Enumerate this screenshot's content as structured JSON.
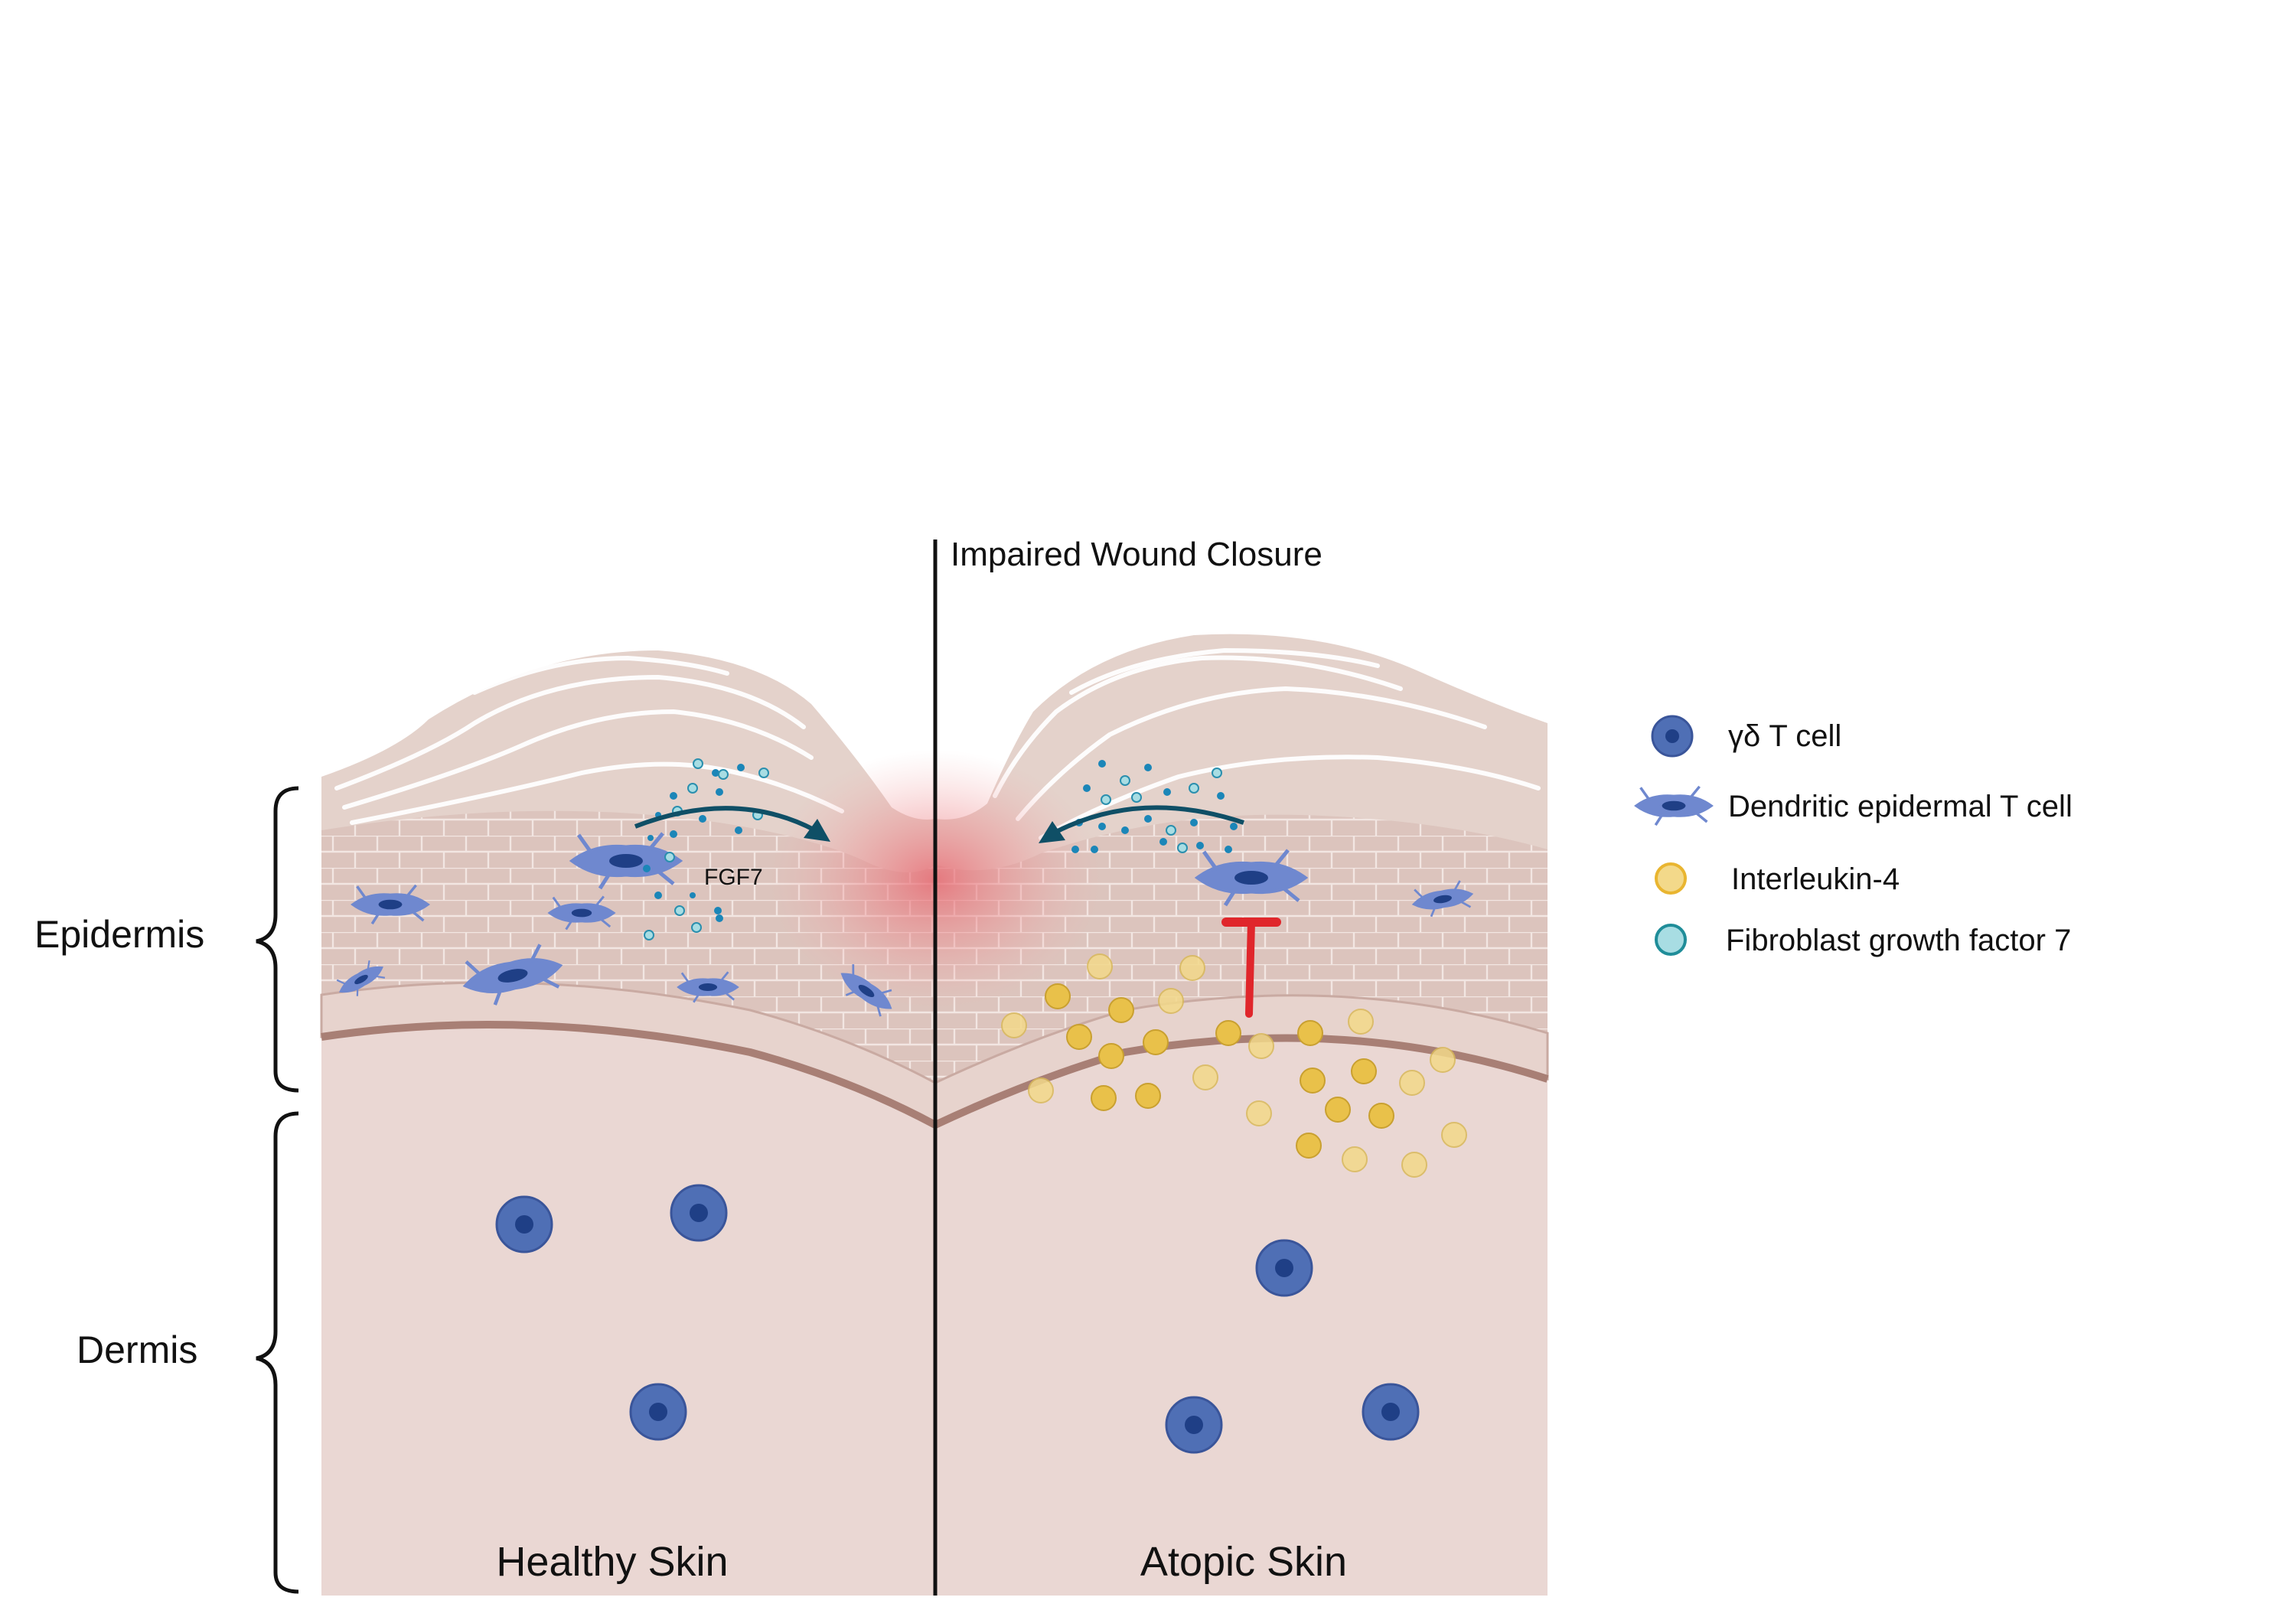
{
  "header": {
    "title": "Impaired Wound Closure"
  },
  "layers": {
    "epidermis": "Epidermis",
    "dermis": "Dermis"
  },
  "panels": {
    "left": "Healthy Skin",
    "right": "Atopic Skin"
  },
  "annotations": {
    "fgf7": "FGF7"
  },
  "legend": {
    "items": [
      {
        "label": "γδ T cell",
        "icon": "gamma-delta-t-cell-icon"
      },
      {
        "label": "Dendritic epidermal  T cell",
        "icon": "dendritic-epidermal-t-cell-icon"
      },
      {
        "label": "Interleukin-4",
        "icon": "interleukin-4-icon"
      },
      {
        "label": "Fibroblast growth factor 7",
        "icon": "fgf7-molecule-icon"
      }
    ]
  },
  "colors": {
    "dermis": "#ead7d3",
    "epidermis": "#dcc3bc",
    "stratum_corneum": "#e8d6d0",
    "basal_line": "#b08a80",
    "wound_glow": "#e8606a",
    "t_cell": "#4f6fb5",
    "t_cell_nucleus": "#1f3f86",
    "detc": "#6f88cf",
    "il4": "#e9c14a",
    "fgf7": "#a8dde3",
    "fgf7_dark": "#1b86b8",
    "arrow": "#0f4f66",
    "inhibition": "#e0262b"
  }
}
